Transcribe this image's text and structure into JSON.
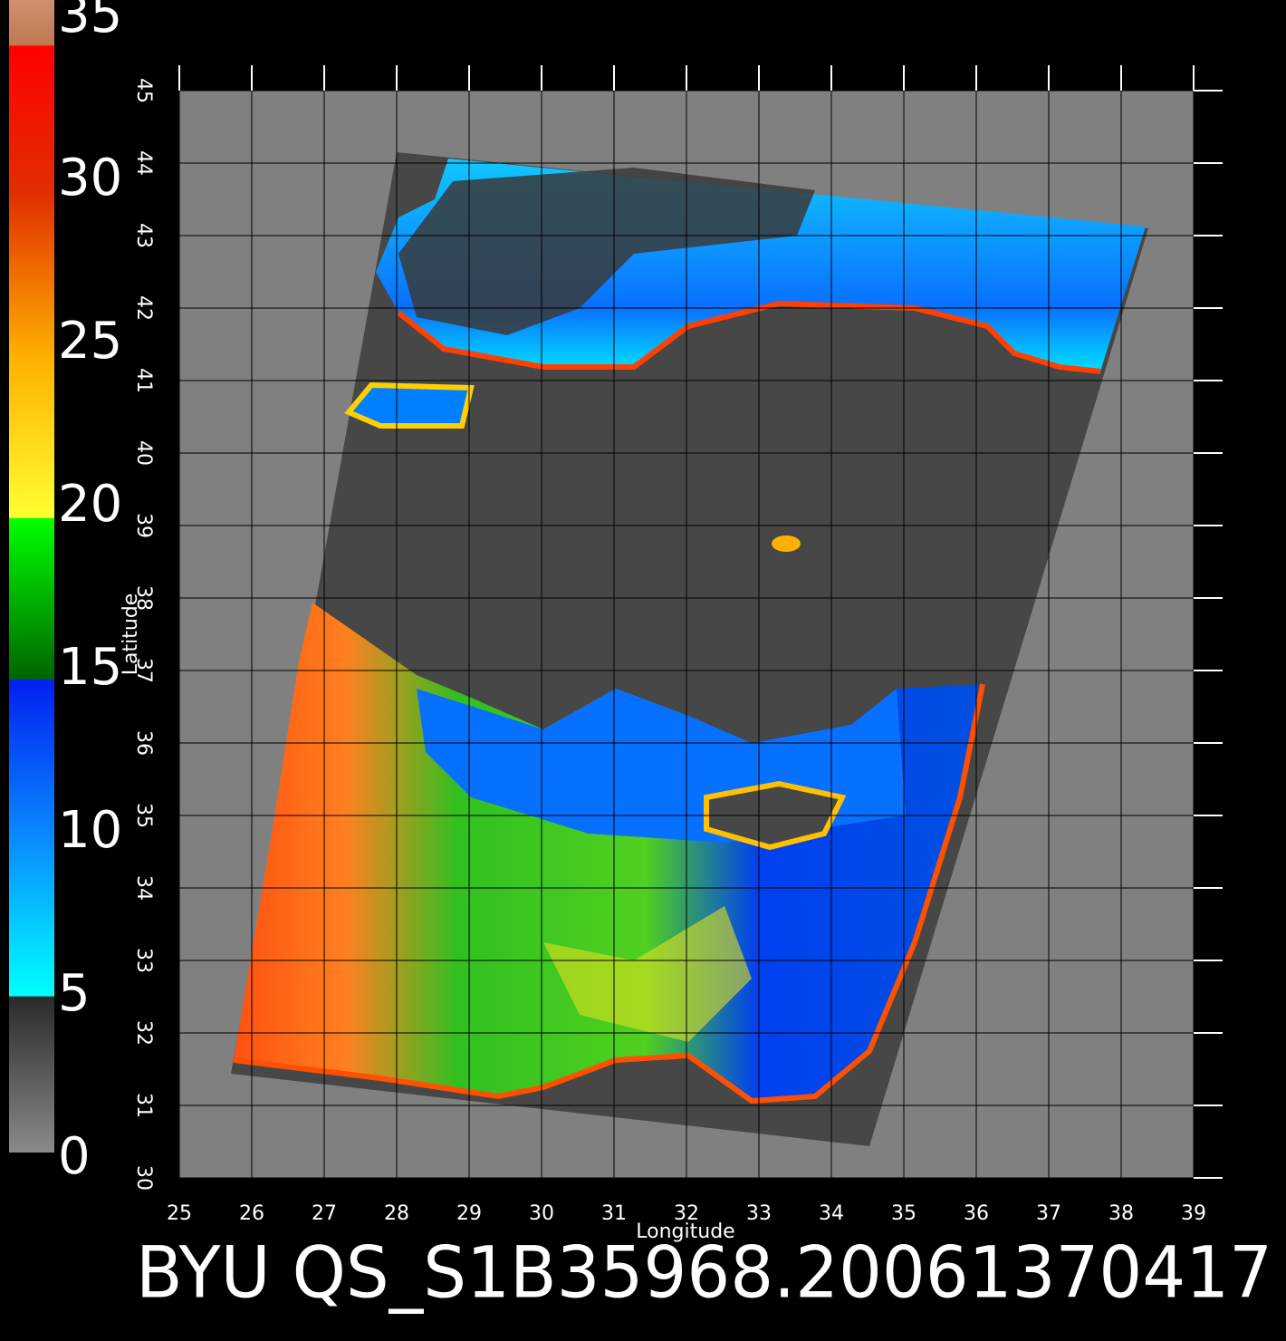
{
  "chart_data": {
    "type": "map",
    "title": "BYU QS_S1B35968.20061370417",
    "xlabel": "Longitude",
    "ylabel": "Latitude",
    "xlim": [
      25,
      39
    ],
    "ylim": [
      30,
      45
    ],
    "xticks": [
      25,
      26,
      27,
      28,
      29,
      30,
      31,
      32,
      33,
      34,
      35,
      36,
      37,
      38,
      39
    ],
    "yticks": [
      30,
      31,
      32,
      33,
      34,
      35,
      36,
      37,
      38,
      39,
      40,
      41,
      42,
      43,
      44,
      45
    ],
    "clim": [
      0,
      35
    ],
    "cticks": [
      0,
      5,
      10,
      15,
      20,
      25,
      30,
      35
    ],
    "grid": true
  }
}
